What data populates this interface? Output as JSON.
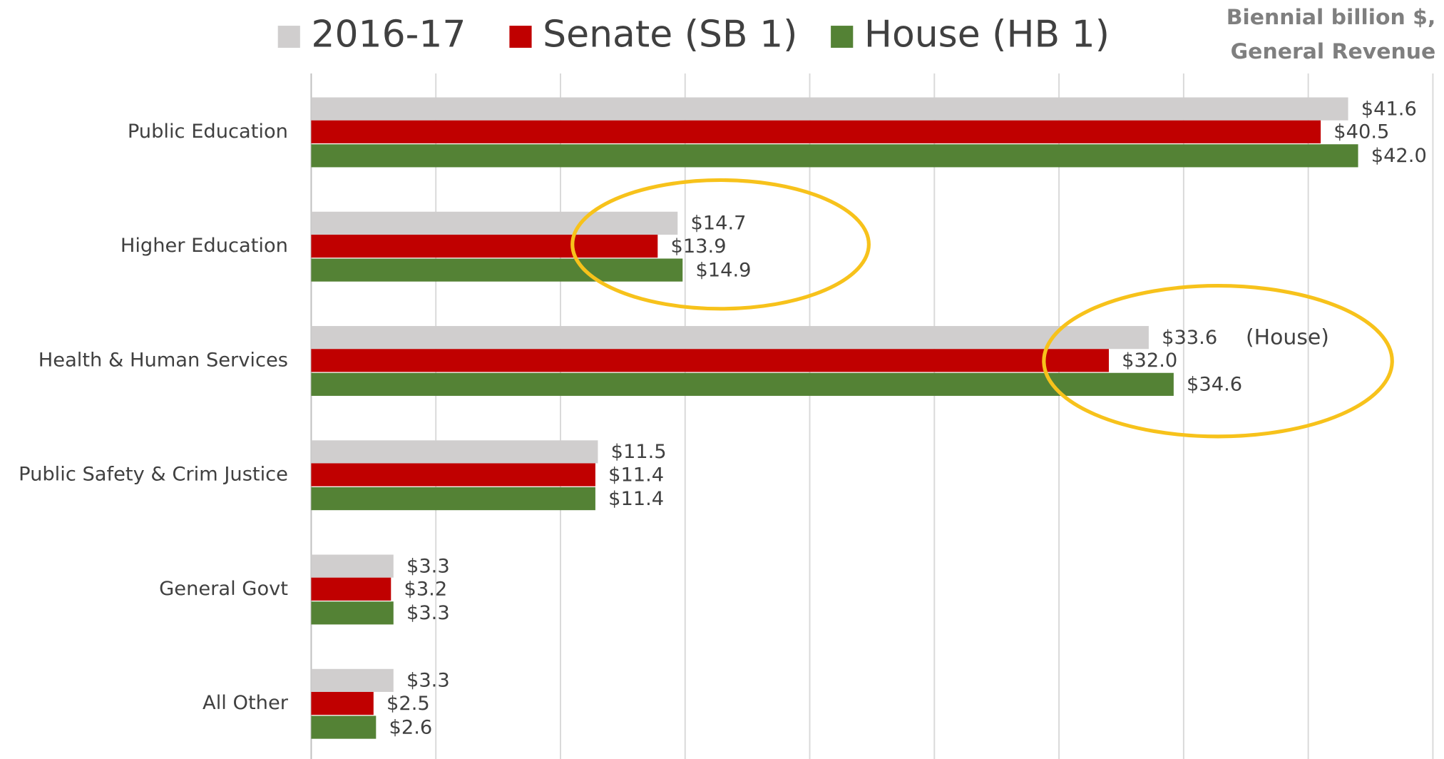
{
  "chart_data": {
    "type": "bar",
    "orientation": "horizontal",
    "unit_label": [
      "Biennial billion $,",
      "General Revenue"
    ],
    "annotations": [
      "(House)"
    ],
    "categories": [
      "Public Education",
      "Higher Education",
      "Health & Human Services",
      "Public Safety & Crim Justice",
      "General Govt",
      "All Other"
    ],
    "series": [
      {
        "name": "2016-17",
        "color": "#d0cece",
        "values": [
          41.6,
          14.7,
          33.6,
          11.5,
          3.3,
          3.3
        ],
        "value_labels": [
          "$41.6",
          "$14.7",
          "$33.6",
          "$11.5",
          "$3.3",
          "$3.3"
        ]
      },
      {
        "name": "Senate (SB 1)",
        "color": "#c00000",
        "values": [
          40.5,
          13.9,
          32.0,
          11.4,
          3.2,
          2.5
        ],
        "value_labels": [
          "$40.5",
          "$13.9",
          "$32.0",
          "$11.4",
          "$3.2",
          "$2.5"
        ]
      },
      {
        "name": "House (HB 1)",
        "color": "#548235",
        "values": [
          42.0,
          14.9,
          34.6,
          11.4,
          3.3,
          2.6
        ],
        "value_labels": [
          "$42.0",
          "$14.9",
          "$34.6",
          "$11.4",
          "$3.3",
          "$2.6"
        ]
      }
    ],
    "xlim": [
      0,
      45
    ],
    "xticks": [
      0,
      5,
      10,
      15,
      20,
      25,
      30,
      35,
      40,
      45
    ],
    "grid": true,
    "legend": "top"
  }
}
